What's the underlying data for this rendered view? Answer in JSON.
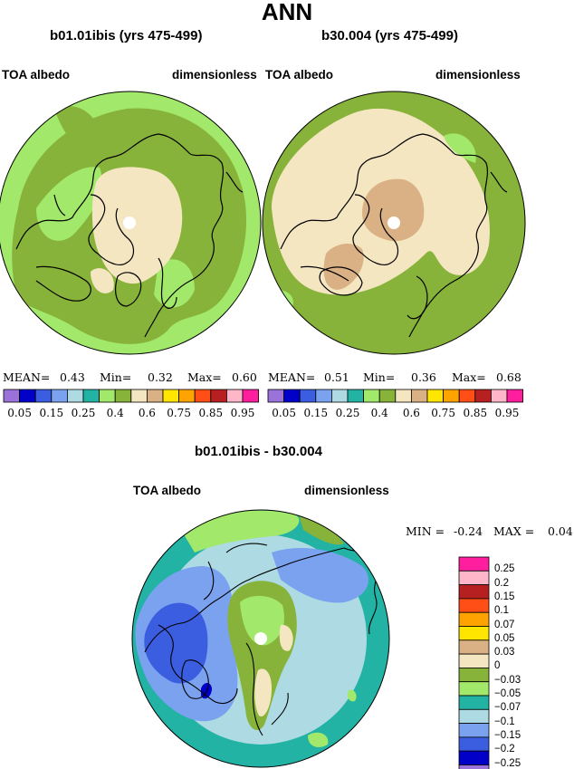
{
  "main_title": "ANN",
  "panels": [
    {
      "title": "b01.01ibis (yrs 475-499)",
      "left_label": "TOA albedo",
      "right_label": "dimensionless",
      "mean_label": "MEAN=",
      "mean": "0.43",
      "min_label": "Min=",
      "min": "0.32",
      "max_label": "Max=",
      "max": "0.60"
    },
    {
      "title": "b30.004 (yrs 475-499)",
      "left_label": "TOA albedo",
      "right_label": "dimensionless",
      "mean_label": "MEAN=",
      "mean": "0.51",
      "min_label": "Min=",
      "min": "0.36",
      "max_label": "Max=",
      "max": "0.68"
    }
  ],
  "colorbar": {
    "colors": [
      "#9b72d9",
      "#0000c8",
      "#3b5ee0",
      "#7aa2ef",
      "#aedbe3",
      "#22b3a4",
      "#a2e86a",
      "#87b33a",
      "#f5e6c2",
      "#d9b184",
      "#ffe600",
      "#ffa300",
      "#ff4f16",
      "#b72020",
      "#ffb6c8",
      "#ff1f9e"
    ],
    "tick_labels": [
      "0.05",
      "0.15",
      "0.25",
      "0.4",
      "0.6",
      "0.75",
      "0.85",
      "0.95"
    ]
  },
  "diff": {
    "title": "b01.01ibis - b30.004",
    "left_label": "TOA albedo",
    "right_label": "dimensionless",
    "min_label": "MIN =",
    "min": "-0.24",
    "max_label": "MAX =",
    "max": "0.04",
    "colorbar_colors": [
      "#ff1f9e",
      "#ffb6c8",
      "#b72020",
      "#ff4f16",
      "#ffa300",
      "#ffe600",
      "#d9b184",
      "#f5e6c2",
      "#87b33a",
      "#a2e86a",
      "#22b3a4",
      "#aedbe3",
      "#7aa2ef",
      "#3b5ee0",
      "#0000c8",
      "#9b72d9"
    ],
    "colorbar_labels": [
      "0.25",
      "0.2",
      "0.15",
      "0.1",
      "0.07",
      "0.05",
      "0.03",
      "0",
      "−0.03",
      "−0.05",
      "−0.07",
      "−0.1",
      "−0.15",
      "−0.2",
      "−0.25"
    ]
  }
}
